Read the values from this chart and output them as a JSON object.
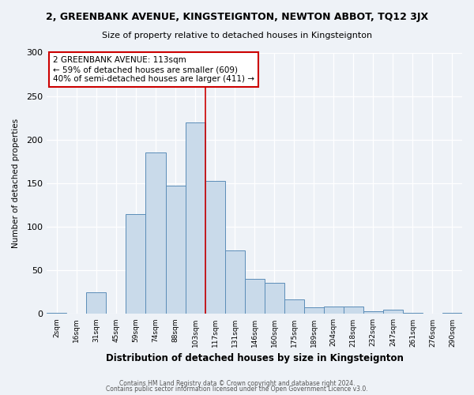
{
  "title": "2, GREENBANK AVENUE, KINGSTEIGNTON, NEWTON ABBOT, TQ12 3JX",
  "subtitle": "Size of property relative to detached houses in Kingsteignton",
  "xlabel": "Distribution of detached houses by size in Kingsteignton",
  "ylabel": "Number of detached properties",
  "bin_labels": [
    "2sqm",
    "16sqm",
    "31sqm",
    "45sqm",
    "59sqm",
    "74sqm",
    "88sqm",
    "103sqm",
    "117sqm",
    "131sqm",
    "146sqm",
    "160sqm",
    "175sqm",
    "189sqm",
    "204sqm",
    "218sqm",
    "232sqm",
    "247sqm",
    "261sqm",
    "276sqm",
    "290sqm"
  ],
  "bar_heights": [
    1,
    0,
    25,
    0,
    115,
    185,
    147,
    220,
    153,
    73,
    40,
    36,
    17,
    8,
    9,
    9,
    3,
    5,
    1,
    0,
    1
  ],
  "bar_color": "#c9daea",
  "bar_edge_color": "#5b8db8",
  "property_line_x": 8,
  "annotation_title": "2 GREENBANK AVENUE: 113sqm",
  "annotation_line1": "← 59% of detached houses are smaller (609)",
  "annotation_line2": "40% of semi-detached houses are larger (411) →",
  "annotation_box_color": "#ffffff",
  "annotation_box_edge": "#cc0000",
  "vline_color": "#cc0000",
  "ylim": [
    0,
    300
  ],
  "yticks": [
    0,
    50,
    100,
    150,
    200,
    250,
    300
  ],
  "footer1": "Contains HM Land Registry data © Crown copyright and database right 2024.",
  "footer2": "Contains public sector information licensed under the Open Government Licence v3.0.",
  "background_color": "#eef2f7"
}
